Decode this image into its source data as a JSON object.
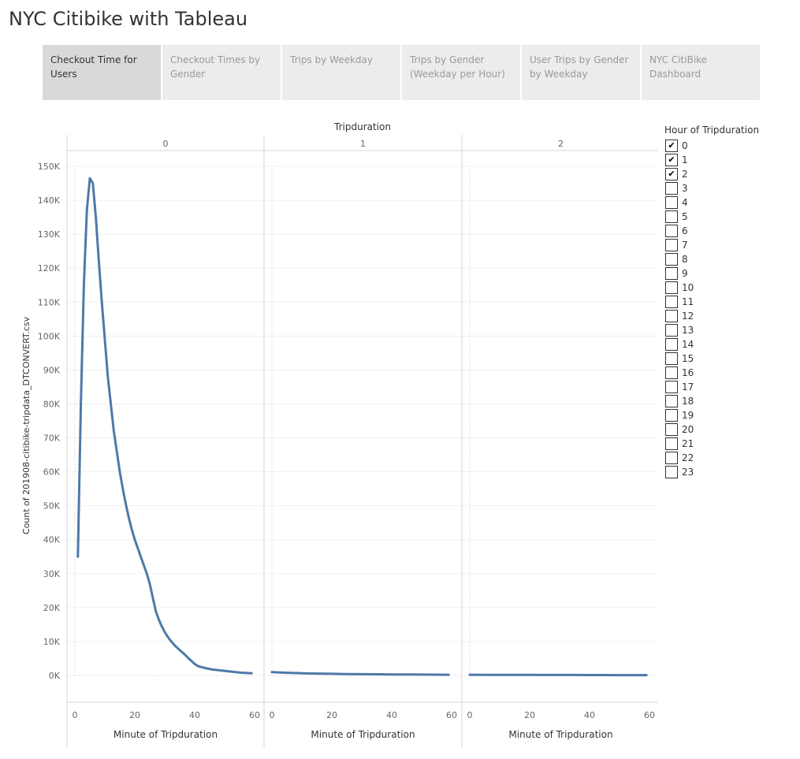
{
  "title": "NYC Citibike with Tableau",
  "tabs": [
    {
      "label": "Checkout Time for Users",
      "active": true
    },
    {
      "label": "Checkout Times by Gender",
      "active": false
    },
    {
      "label": "Trips by Weekday",
      "active": false
    },
    {
      "label": "Trips by Gender (Weekday per Hour)",
      "active": false
    },
    {
      "label": "User Trips by Gender by Weekday",
      "active": false
    },
    {
      "label": "NYC CitiBike Dashboard",
      "active": false
    }
  ],
  "legend": {
    "title": "Hour of Tripduration",
    "items": [
      {
        "label": "0",
        "checked": true
      },
      {
        "label": "1",
        "checked": true
      },
      {
        "label": "2",
        "checked": true
      },
      {
        "label": "3",
        "checked": false
      },
      {
        "label": "4",
        "checked": false
      },
      {
        "label": "5",
        "checked": false
      },
      {
        "label": "6",
        "checked": false
      },
      {
        "label": "7",
        "checked": false
      },
      {
        "label": "8",
        "checked": false
      },
      {
        "label": "9",
        "checked": false
      },
      {
        "label": "10",
        "checked": false
      },
      {
        "label": "11",
        "checked": false
      },
      {
        "label": "12",
        "checked": false
      },
      {
        "label": "13",
        "checked": false
      },
      {
        "label": "14",
        "checked": false
      },
      {
        "label": "15",
        "checked": false
      },
      {
        "label": "16",
        "checked": false
      },
      {
        "label": "17",
        "checked": false
      },
      {
        "label": "18",
        "checked": false
      },
      {
        "label": "19",
        "checked": false
      },
      {
        "label": "20",
        "checked": false
      },
      {
        "label": "21",
        "checked": false
      },
      {
        "label": "22",
        "checked": false
      },
      {
        "label": "23",
        "checked": false
      }
    ]
  },
  "chart_data": {
    "type": "line",
    "title": "",
    "panel_header": "Tripduration",
    "xlabel": "Minute of Tripduration",
    "ylabel": "Count of 201908-citibike-tripdata_DTCONVERT.csv",
    "xlim": [
      0,
      60
    ],
    "ylim": [
      0,
      150000
    ],
    "x_ticks": [
      0,
      20,
      40,
      60
    ],
    "x_tick_labels": [
      "0",
      "20",
      "40",
      "60"
    ],
    "y_ticks": [
      0,
      10000,
      20000,
      30000,
      40000,
      50000,
      60000,
      70000,
      80000,
      90000,
      100000,
      110000,
      120000,
      130000,
      140000,
      150000
    ],
    "y_tick_labels": [
      "0K",
      "10K",
      "20K",
      "30K",
      "40K",
      "50K",
      "60K",
      "70K",
      "80K",
      "90K",
      "100K",
      "110K",
      "120K",
      "130K",
      "140K",
      "150K"
    ],
    "grid": true,
    "line_color": "#4e79a7",
    "panels": [
      {
        "label": "0",
        "x": [
          1,
          2,
          3,
          4,
          5,
          6,
          7,
          8,
          9,
          10,
          11,
          12,
          13,
          14,
          15,
          16,
          17,
          18,
          19,
          20,
          21,
          22,
          23,
          24,
          25,
          26,
          27,
          28,
          29,
          30,
          31,
          32,
          33,
          34,
          35,
          36,
          37,
          38,
          39,
          40,
          41,
          42,
          43,
          44,
          45,
          46,
          47,
          48,
          49,
          50,
          51,
          52,
          53,
          54,
          55,
          56,
          57,
          58,
          59
        ],
        "y": [
          35000,
          80000,
          115000,
          137000,
          146500,
          145000,
          135000,
          122000,
          110000,
          99000,
          88000,
          80000,
          72000,
          66000,
          60000,
          55000,
          50500,
          46500,
          43000,
          40000,
          37500,
          35000,
          32500,
          30000,
          27000,
          23000,
          19000,
          16500,
          14500,
          12800,
          11400,
          10200,
          9200,
          8300,
          7500,
          6700,
          5900,
          5000,
          4200,
          3400,
          2800,
          2500,
          2300,
          2100,
          1900,
          1750,
          1650,
          1550,
          1450,
          1350,
          1250,
          1150,
          1050,
          950,
          850,
          800,
          750,
          700,
          650
        ]
      },
      {
        "label": "1",
        "x": [
          0,
          5,
          10,
          15,
          20,
          25,
          30,
          35,
          40,
          45,
          50,
          55,
          59
        ],
        "y": [
          1000,
          800,
          650,
          550,
          480,
          420,
          380,
          340,
          310,
          280,
          260,
          240,
          220
        ]
      },
      {
        "label": "2",
        "x": [
          0,
          5,
          10,
          15,
          20,
          25,
          30,
          35,
          40,
          45,
          50,
          55,
          59
        ],
        "y": [
          200,
          190,
          180,
          170,
          160,
          150,
          140,
          130,
          120,
          110,
          100,
          95,
          90
        ]
      }
    ]
  }
}
